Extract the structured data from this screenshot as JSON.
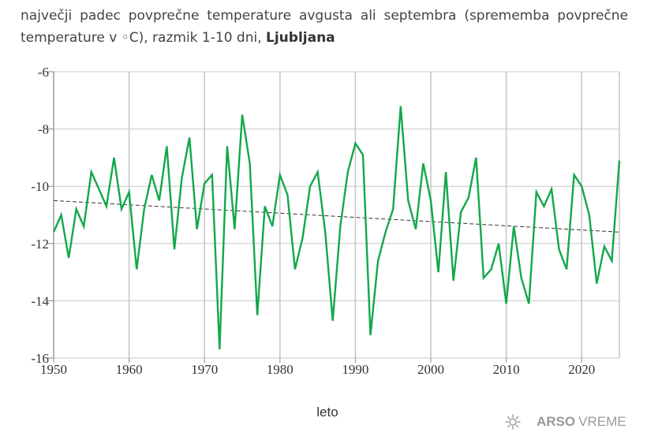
{
  "header": {
    "title_text": "največji padec povprečne temperature avgusta ali septembra (sprememba povprečne temperature v ◦C), razmik 1-10 dni,",
    "location": "Ljubljana"
  },
  "branding": {
    "name_bold": "ARSO",
    "name_light": "VREME"
  },
  "colors": {
    "series": "#12a84a",
    "trend": "#333333",
    "grid": "#c8c8c8",
    "axis": "#888888"
  },
  "chart_data": {
    "type": "line",
    "title": "največji padec povprečne temperature avgusta ali septembra (sprememba povprečne temperature v ◦C), razmik 1-10 dni, Ljubljana",
    "xlabel": "leto",
    "ylabel": "",
    "xlim": [
      1950,
      2025
    ],
    "ylim": [
      -16,
      -6
    ],
    "xticks": [
      1950,
      1960,
      1970,
      1980,
      1990,
      2000,
      2010,
      2020
    ],
    "yticks": [
      -6,
      -8,
      -10,
      -12,
      -14,
      -16
    ],
    "grid": true,
    "series": [
      {
        "name": "padec temperature",
        "x": [
          1950,
          1951,
          1952,
          1953,
          1954,
          1955,
          1956,
          1957,
          1958,
          1959,
          1960,
          1961,
          1962,
          1963,
          1964,
          1965,
          1966,
          1967,
          1968,
          1969,
          1970,
          1971,
          1972,
          1973,
          1974,
          1975,
          1976,
          1977,
          1978,
          1979,
          1980,
          1981,
          1982,
          1983,
          1984,
          1985,
          1986,
          1987,
          1988,
          1989,
          1990,
          1991,
          1992,
          1993,
          1994,
          1995,
          1996,
          1997,
          1998,
          1999,
          2000,
          2001,
          2002,
          2003,
          2004,
          2005,
          2006,
          2007,
          2008,
          2009,
          2010,
          2011,
          2012,
          2013,
          2014,
          2015,
          2016,
          2017,
          2018,
          2019,
          2020,
          2021,
          2022,
          2023,
          2024,
          2025
        ],
        "values": [
          -11.6,
          -11.0,
          -12.5,
          -10.8,
          -11.4,
          -9.5,
          -10.1,
          -10.7,
          -9.0,
          -10.8,
          -10.2,
          -12.9,
          -10.8,
          -9.6,
          -10.5,
          -8.6,
          -12.2,
          -9.7,
          -8.3,
          -11.5,
          -9.9,
          -9.6,
          -15.7,
          -8.6,
          -11.5,
          -7.5,
          -9.2,
          -14.5,
          -10.7,
          -11.4,
          -9.6,
          -10.3,
          -12.9,
          -11.8,
          -10.0,
          -9.5,
          -11.6,
          -14.7,
          -11.4,
          -9.5,
          -8.5,
          -8.9,
          -15.2,
          -12.6,
          -11.6,
          -10.8,
          -7.2,
          -10.5,
          -11.5,
          -9.2,
          -10.5,
          -13.0,
          -9.5,
          -13.3,
          -10.9,
          -10.4,
          -9.0,
          -13.2,
          -12.9,
          -12.0,
          -14.1,
          -11.4,
          -13.2,
          -14.1,
          -10.2,
          -10.7,
          -10.1,
          -12.2,
          -12.9,
          -9.6,
          -10.0,
          -11.0,
          -13.4,
          -12.1,
          -12.6,
          -9.1
        ]
      },
      {
        "name": "trend",
        "x": [
          1950,
          2025
        ],
        "values": [
          -10.5,
          -11.6
        ]
      }
    ]
  }
}
